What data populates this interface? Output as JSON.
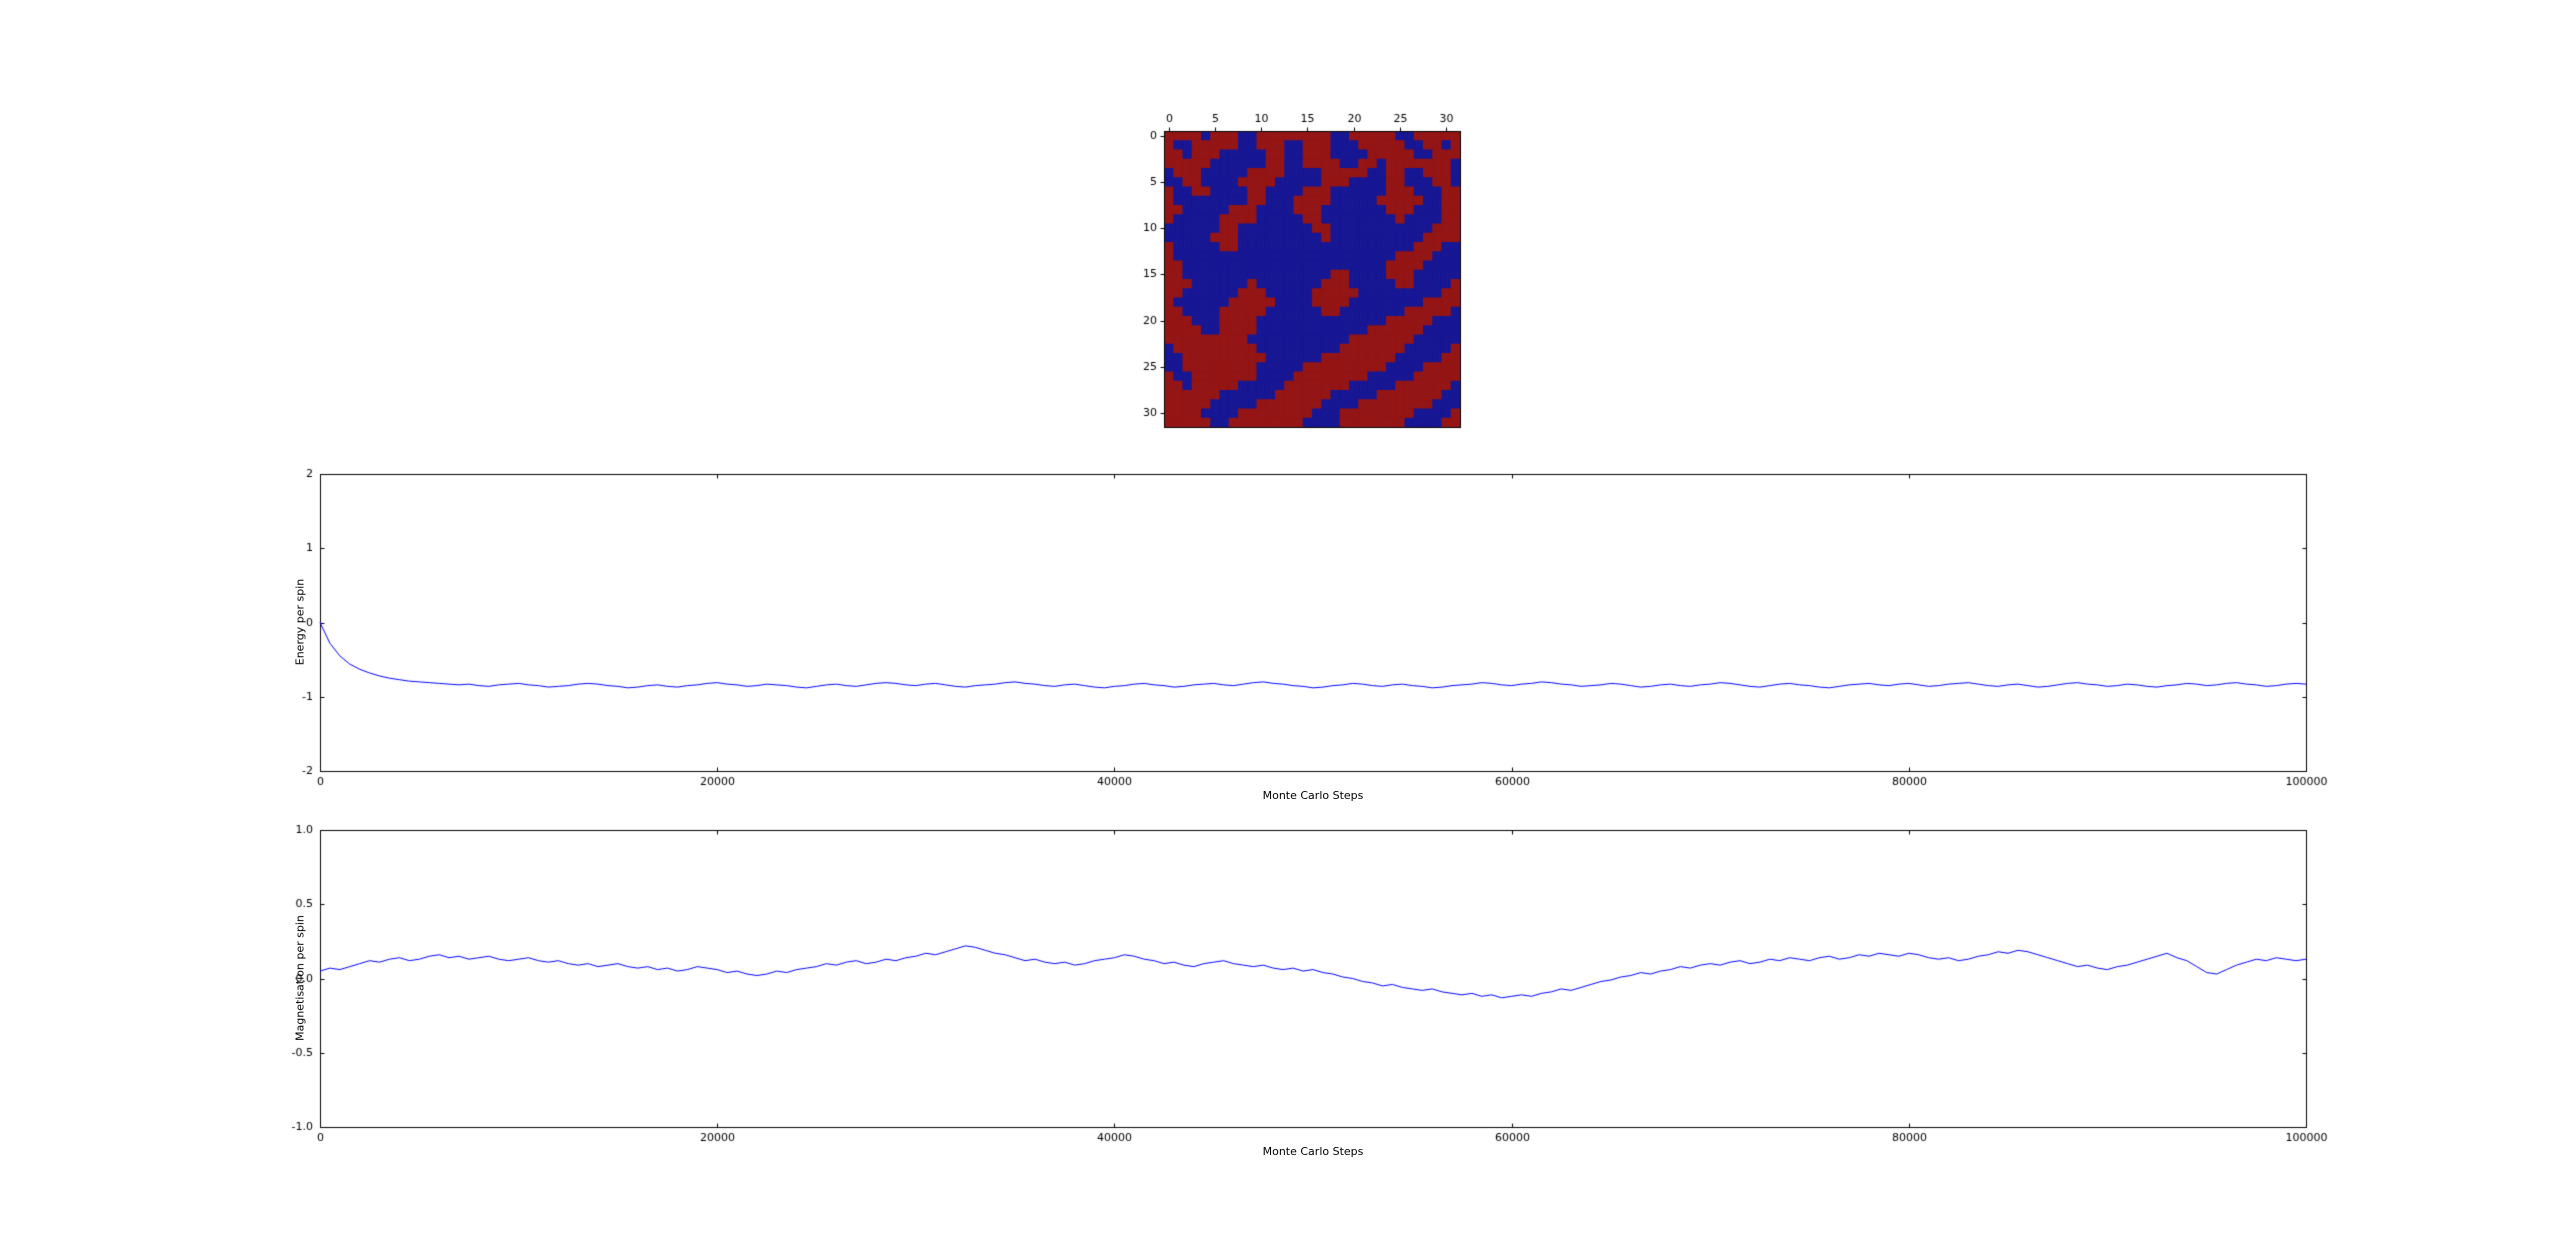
{
  "figure": {
    "background": "#ffffff",
    "axis_color": "#000000",
    "text_color": "#000000",
    "series_color": "#0000ff",
    "tick_font_px": 11
  },
  "chart_data": [
    {
      "type": "heatmap",
      "name": "spin-lattice",
      "rows": 32,
      "cols": 32,
      "x_tick_values": [
        0,
        5,
        10,
        15,
        20,
        25,
        30
      ],
      "x_tick_labels": [
        "0",
        "5",
        "10",
        "15",
        "20",
        "25",
        "30"
      ],
      "y_tick_values": [
        0,
        5,
        10,
        15,
        20,
        25,
        30
      ],
      "y_tick_labels": [
        "0",
        "5",
        "10",
        "15",
        "20",
        "25",
        "30"
      ],
      "value_map": {
        "R": 1,
        "B": -1
      },
      "colors": {
        "R": "#941515",
        "B": "#171794"
      },
      "cells": [
        "RRRRBRRRBBRRRRRRRRBBRRRRRBBRRRRR",
        "RBBRRRRRBBRRRBBRRRBBBRRRRRBBRRBR",
        "RRBRRRBBBBBRRBBRRRBBBBRRRRRBBRRR",
        "RRRRRBBBBBBRRBBRRRRBBRRBRRRRRRRB",
        "BRRRBBBBBRRRRBBBBRRRRRBBRRBBRRRB",
        "BBRRBBBBRRRRBBBBBRRRBBBBRRBBBRRB",
        "RBBRRBBBBRRBBBBRRRBBBBBBRRRBBBRR",
        "RBBBBBBBBRRBBBRRRRBBBBBRRRRRBBRR",
        "RRBBBBBRRRBBBBRRRBBBBBBBRRRBBBRR",
        "RBBBBBRRRRBBBBBRRBBBBBBBBRBBBBRR",
        "BBBBBBRRBBBBBBBBRRBBBBBBBBBBBRRR",
        "BBBBBRRRBBBBBBBBBRBBBBBBBBBBRRRR",
        "RBBBBBRRBBBBBBBBBBBBBBBBBBBRRRBB",
        "RBBBBBBBBBBBBBBBBBBBBBBBBRRRRBBB",
        "RRBBBBBBBBBBBBBBBBBBBBBBRRRRBBBB",
        "RRBBBBBBBBBBBBBBBBRRBBBBRRRBBBBB",
        "RRRBBBBBBRBBBBBBBRRRBBBBBRRBBBBR",
        "RRBBBBBBRRRBBBBBRRRRRBBBBBBBBBRR",
        "RBBBBBBRRRRRBBBBRRRRBBBBBBBBRRRR",
        "RRBBBBRRRRRBBBBBBRRBBBBBBBRRRRRB",
        "RRRBBBRRRRBBBBBBBBBBBBBBRRRRRBBB",
        "RRRRBBRRRRBBBBBBBBBBBBRRRRRRBBBB",
        "RRRRRRRRRBBBBBBBBBBBRRRRRRRBBBBB",
        "BRRRRRRRRRBBBBBBBBBRRRRRRRBBBBBR",
        "BBRRRRRRRRRBBBBBBRRRRRRRRBBBBBRR",
        "BBRRRRRRRRBBBBBRRRRRRRRRBBBBRRRR",
        "RBBRRRRRRRBBBBRRRRRRRRBBBBBRRRRR",
        "RRBRRRRRBBBBBRRRRRRRBBBBBRRRRRRB",
        "RRRRRRBBBBBBRRRRRRBBBBBRRRRRRRBB",
        "RRRRRBBBBBRRRRRRRBBBBRRRRRRRRBBB",
        "RRRRBBBBRRRRRRRRBBBRRRRRRRRBBBBR",
        "RRRRRBBRRRRRRRRBBBBRRRRRRRBBBBRR"
      ]
    },
    {
      "type": "line",
      "name": "energy-per-spin",
      "ylabel": "Energy per spin",
      "xlabel": "Monte Carlo Steps",
      "xlim": [
        0,
        100000
      ],
      "ylim": [
        -2,
        2
      ],
      "x_tick_values": [
        0,
        20000,
        40000,
        60000,
        80000,
        100000
      ],
      "x_tick_labels": [
        "0",
        "20000",
        "40000",
        "60000",
        "80000",
        "100000"
      ],
      "y_tick_values": [
        2,
        1,
        0,
        -1,
        -2
      ],
      "y_tick_labels": [
        "2",
        "1",
        "0",
        "-1",
        "-2"
      ],
      "color": "#0000ff",
      "x_start": 0,
      "x_step": 500,
      "y": [
        0.0,
        -0.28,
        -0.45,
        -0.56,
        -0.63,
        -0.68,
        -0.72,
        -0.75,
        -0.77,
        -0.79,
        -0.8,
        -0.81,
        -0.82,
        -0.83,
        -0.84,
        -0.83,
        -0.85,
        -0.86,
        -0.84,
        -0.83,
        -0.82,
        -0.84,
        -0.85,
        -0.87,
        -0.86,
        -0.85,
        -0.83,
        -0.82,
        -0.83,
        -0.85,
        -0.86,
        -0.88,
        -0.87,
        -0.85,
        -0.84,
        -0.86,
        -0.87,
        -0.85,
        -0.84,
        -0.82,
        -0.81,
        -0.83,
        -0.84,
        -0.86,
        -0.85,
        -0.83,
        -0.84,
        -0.85,
        -0.87,
        -0.88,
        -0.86,
        -0.84,
        -0.83,
        -0.85,
        -0.86,
        -0.84,
        -0.82,
        -0.81,
        -0.82,
        -0.84,
        -0.85,
        -0.83,
        -0.82,
        -0.84,
        -0.86,
        -0.87,
        -0.85,
        -0.84,
        -0.83,
        -0.81,
        -0.8,
        -0.82,
        -0.83,
        -0.85,
        -0.86,
        -0.84,
        -0.83,
        -0.85,
        -0.87,
        -0.88,
        -0.86,
        -0.85,
        -0.83,
        -0.82,
        -0.84,
        -0.85,
        -0.87,
        -0.86,
        -0.84,
        -0.83,
        -0.82,
        -0.84,
        -0.85,
        -0.83,
        -0.81,
        -0.8,
        -0.82,
        -0.83,
        -0.85,
        -0.86,
        -0.88,
        -0.87,
        -0.85,
        -0.84,
        -0.82,
        -0.83,
        -0.85,
        -0.86,
        -0.84,
        -0.83,
        -0.85,
        -0.86,
        -0.88,
        -0.87,
        -0.85,
        -0.84,
        -0.83,
        -0.81,
        -0.82,
        -0.84,
        -0.85,
        -0.83,
        -0.82,
        -0.8,
        -0.81,
        -0.83,
        -0.84,
        -0.86,
        -0.85,
        -0.84,
        -0.82,
        -0.83,
        -0.85,
        -0.87,
        -0.86,
        -0.84,
        -0.83,
        -0.85,
        -0.86,
        -0.84,
        -0.83,
        -0.81,
        -0.82,
        -0.84,
        -0.86,
        -0.87,
        -0.85,
        -0.83,
        -0.82,
        -0.84,
        -0.85,
        -0.87,
        -0.88,
        -0.86,
        -0.84,
        -0.83,
        -0.82,
        -0.84,
        -0.85,
        -0.83,
        -0.82,
        -0.84,
        -0.86,
        -0.85,
        -0.83,
        -0.82,
        -0.81,
        -0.83,
        -0.85,
        -0.86,
        -0.84,
        -0.83,
        -0.85,
        -0.87,
        -0.86,
        -0.84,
        -0.82,
        -0.81,
        -0.83,
        -0.84,
        -0.86,
        -0.85,
        -0.83,
        -0.84,
        -0.86,
        -0.87,
        -0.85,
        -0.84,
        -0.82,
        -0.83,
        -0.85,
        -0.84,
        -0.82,
        -0.81,
        -0.83,
        -0.84,
        -0.86,
        -0.85,
        -0.83,
        -0.82,
        -0.83
      ]
    },
    {
      "type": "line",
      "name": "magnetisation-per-spin",
      "ylabel": "Magnetisation per spin",
      "xlabel": "Monte Carlo Steps",
      "xlim": [
        0,
        100000
      ],
      "ylim": [
        -1,
        1
      ],
      "x_tick_values": [
        0,
        20000,
        40000,
        60000,
        80000,
        100000
      ],
      "x_tick_labels": [
        "0",
        "20000",
        "40000",
        "60000",
        "80000",
        "100000"
      ],
      "y_tick_values": [
        1.0,
        0.5,
        0.0,
        -0.5,
        -1.0
      ],
      "y_tick_labels": [
        "1.0",
        "0.5",
        "0.0",
        "-0.5",
        "-1.0"
      ],
      "color": "#0000ff",
      "x_start": 0,
      "x_step": 500,
      "y": [
        0.05,
        0.07,
        0.06,
        0.08,
        0.1,
        0.12,
        0.11,
        0.13,
        0.14,
        0.12,
        0.13,
        0.15,
        0.16,
        0.14,
        0.15,
        0.13,
        0.14,
        0.15,
        0.13,
        0.12,
        0.13,
        0.14,
        0.12,
        0.11,
        0.12,
        0.1,
        0.09,
        0.1,
        0.08,
        0.09,
        0.1,
        0.08,
        0.07,
        0.08,
        0.06,
        0.07,
        0.05,
        0.06,
        0.08,
        0.07,
        0.06,
        0.04,
        0.05,
        0.03,
        0.02,
        0.03,
        0.05,
        0.04,
        0.06,
        0.07,
        0.08,
        0.1,
        0.09,
        0.11,
        0.12,
        0.1,
        0.11,
        0.13,
        0.12,
        0.14,
        0.15,
        0.17,
        0.16,
        0.18,
        0.2,
        0.22,
        0.21,
        0.19,
        0.17,
        0.16,
        0.14,
        0.12,
        0.13,
        0.11,
        0.1,
        0.11,
        0.09,
        0.1,
        0.12,
        0.13,
        0.14,
        0.16,
        0.15,
        0.13,
        0.12,
        0.1,
        0.11,
        0.09,
        0.08,
        0.1,
        0.11,
        0.12,
        0.1,
        0.09,
        0.08,
        0.09,
        0.07,
        0.06,
        0.07,
        0.05,
        0.06,
        0.04,
        0.03,
        0.01,
        0.0,
        -0.02,
        -0.03,
        -0.05,
        -0.04,
        -0.06,
        -0.07,
        -0.08,
        -0.07,
        -0.09,
        -0.1,
        -0.11,
        -0.1,
        -0.12,
        -0.11,
        -0.13,
        -0.12,
        -0.11,
        -0.12,
        -0.1,
        -0.09,
        -0.07,
        -0.08,
        -0.06,
        -0.04,
        -0.02,
        -0.01,
        0.01,
        0.02,
        0.04,
        0.03,
        0.05,
        0.06,
        0.08,
        0.07,
        0.09,
        0.1,
        0.09,
        0.11,
        0.12,
        0.1,
        0.11,
        0.13,
        0.12,
        0.14,
        0.13,
        0.12,
        0.14,
        0.15,
        0.13,
        0.14,
        0.16,
        0.15,
        0.17,
        0.16,
        0.15,
        0.17,
        0.16,
        0.14,
        0.13,
        0.14,
        0.12,
        0.13,
        0.15,
        0.16,
        0.18,
        0.17,
        0.19,
        0.18,
        0.16,
        0.14,
        0.12,
        0.1,
        0.08,
        0.09,
        0.07,
        0.06,
        0.08,
        0.09,
        0.11,
        0.13,
        0.15,
        0.17,
        0.14,
        0.12,
        0.08,
        0.04,
        0.03,
        0.06,
        0.09,
        0.11,
        0.13,
        0.12,
        0.14,
        0.13,
        0.12,
        0.13
      ]
    }
  ]
}
